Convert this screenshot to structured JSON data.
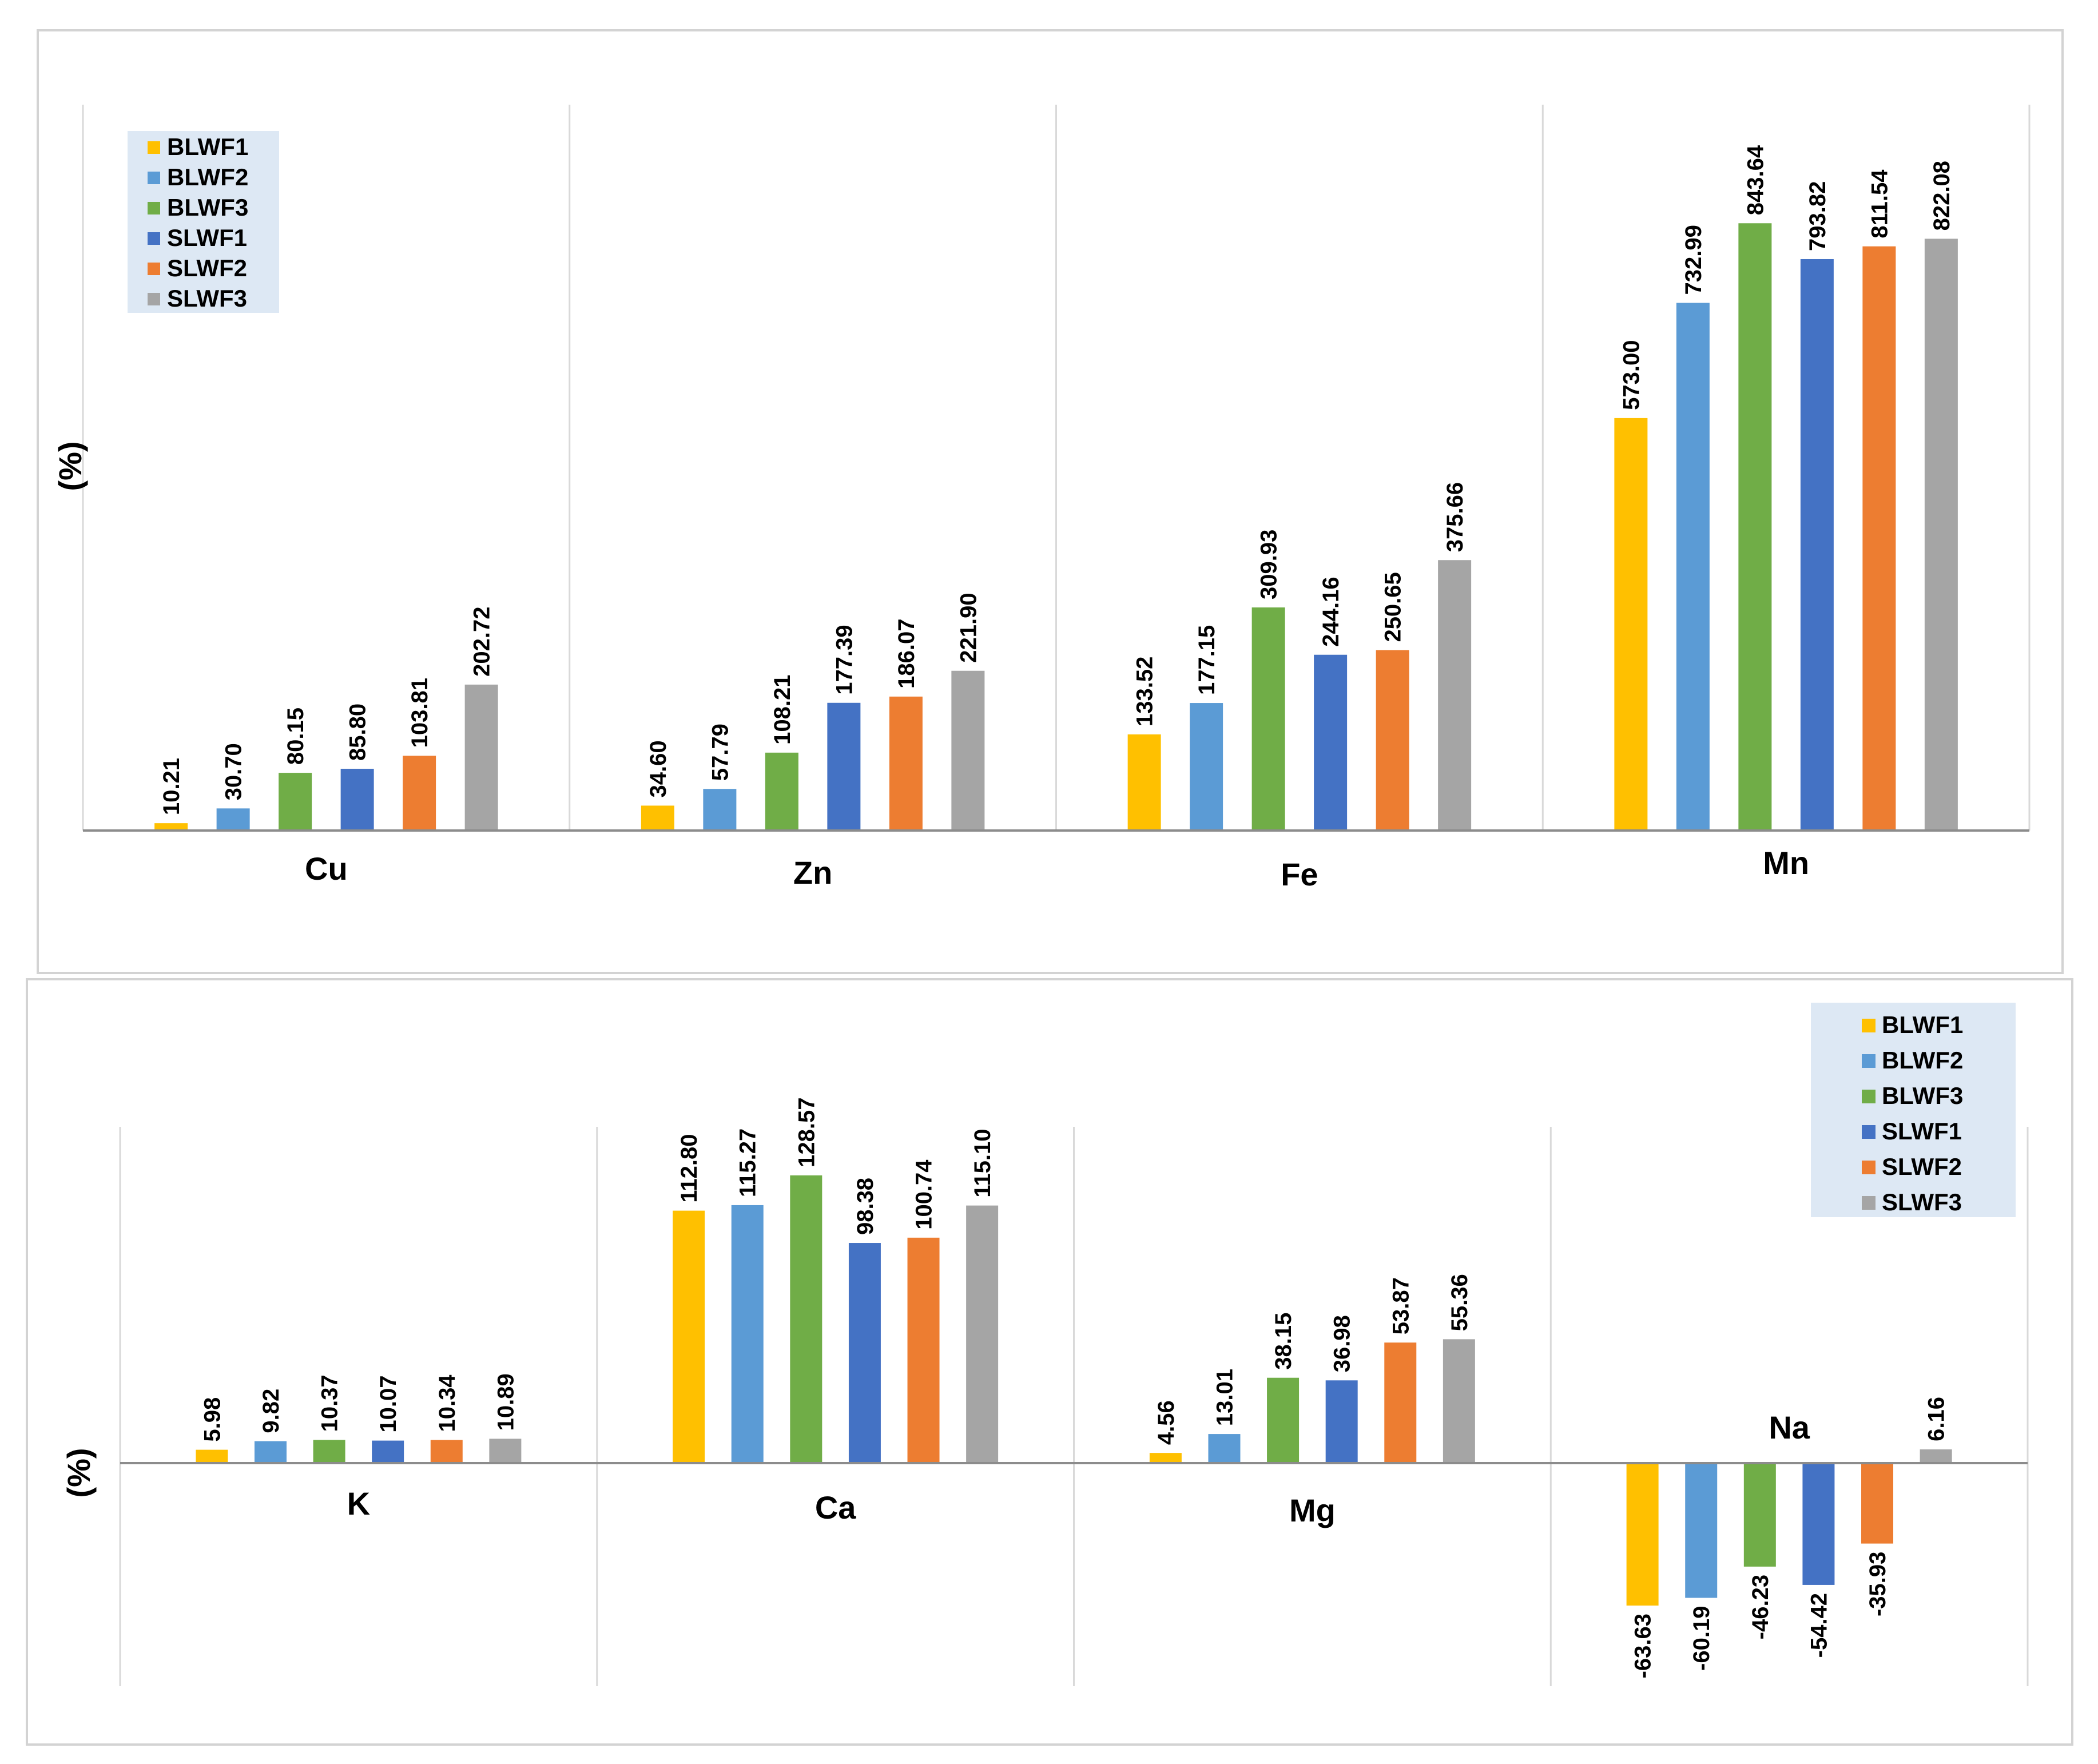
{
  "chart_data": [
    {
      "type": "bar",
      "ylabel": "(%)",
      "categories": [
        "Cu",
        "Zn",
        "Fe",
        "Mn"
      ],
      "series": [
        {
          "name": "BLWF1",
          "color": "#FFC000",
          "values": [
            10.21,
            34.6,
            133.52,
            573.0
          ]
        },
        {
          "name": "BLWF2",
          "color": "#5B9BD5",
          "values": [
            30.7,
            57.79,
            177.15,
            732.99
          ]
        },
        {
          "name": "BLWF3",
          "color": "#70AD47",
          "values": [
            80.15,
            108.21,
            309.93,
            843.64
          ]
        },
        {
          "name": "SLWF1",
          "color": "#4472C4",
          "values": [
            85.8,
            177.39,
            244.16,
            793.82
          ]
        },
        {
          "name": "SLWF2",
          "color": "#ED7D31",
          "values": [
            103.81,
            186.07,
            250.65,
            811.54
          ]
        },
        {
          "name": "SLWF3",
          "color": "#A5A5A5",
          "values": [
            202.72,
            221.9,
            375.66,
            822.08
          ]
        }
      ],
      "value_labels": [
        [
          "10.21",
          "34.60",
          "133.52",
          "573.00"
        ],
        [
          "30.70",
          "57.79",
          "177.15",
          "732.99"
        ],
        [
          "80.15",
          "108.21",
          "309.93",
          "843.64"
        ],
        [
          "85.80",
          "177.39",
          "244.16",
          "793.82"
        ],
        [
          "103.81",
          "186.07",
          "250.65",
          "811.54"
        ],
        [
          "202.72",
          "221.90",
          "375.66",
          "822.08"
        ]
      ],
      "legend_position": "top-left",
      "ylim": [
        0,
        880
      ]
    },
    {
      "type": "bar",
      "ylabel": "(%)",
      "categories": [
        "K",
        "Ca",
        "Mg",
        "Na"
      ],
      "series": [
        {
          "name": "BLWF1",
          "color": "#FFC000",
          "values": [
            5.98,
            112.8,
            4.56,
            -63.63
          ]
        },
        {
          "name": "BLWF2",
          "color": "#5B9BD5",
          "values": [
            9.82,
            115.27,
            13.01,
            -60.19
          ]
        },
        {
          "name": "BLWF3",
          "color": "#70AD47",
          "values": [
            10.37,
            128.57,
            38.15,
            -46.23
          ]
        },
        {
          "name": "SLWF1",
          "color": "#4472C4",
          "values": [
            10.07,
            98.38,
            36.98,
            -54.42
          ]
        },
        {
          "name": "SLWF2",
          "color": "#ED7D31",
          "values": [
            10.34,
            100.74,
            53.87,
            -35.93
          ]
        },
        {
          "name": "SLWF3",
          "color": "#A5A5A5",
          "values": [
            10.89,
            115.1,
            55.36,
            6.16
          ]
        }
      ],
      "value_labels": [
        [
          "5.98",
          "112.80",
          "4.56",
          "-63.63"
        ],
        [
          "9.82",
          "115.27",
          "13.01",
          "-60.19"
        ],
        [
          "10.37",
          "128.57",
          "38.15",
          "-46.23"
        ],
        [
          "10.07",
          "98.38",
          "36.98",
          "-54.42"
        ],
        [
          "10.34",
          "100.74",
          "53.87",
          "-35.93"
        ],
        [
          "10.89",
          "115.10",
          "55.36",
          "6.16"
        ]
      ],
      "legend_position": "top-right",
      "ylim": [
        -100,
        140
      ]
    }
  ]
}
